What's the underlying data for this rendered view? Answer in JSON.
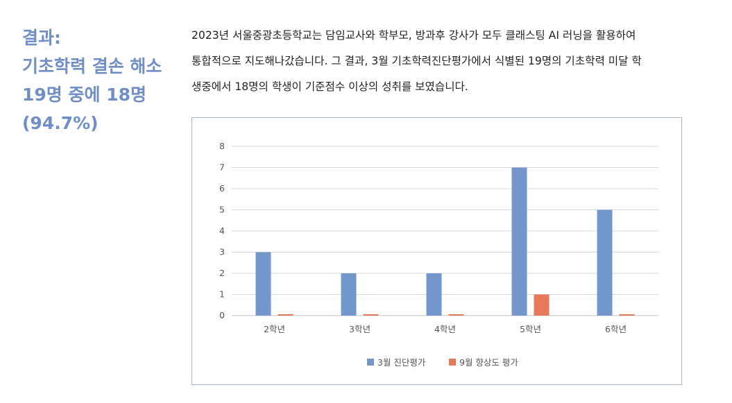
{
  "heading": {
    "lines": [
      "결과:",
      "기초학력 결손 해소",
      "19명 중에 18명",
      "(94.7%)"
    ]
  },
  "description": {
    "lines": [
      "2023년 서울중광초등학교는 담임교사와 학부모, 방과후 강사가 모두 클래스팅 AI 러닝을 활용하여",
      "통합적으로 지도해나갔습니다. 그 결과, 3월 기초학력진단평가에서 식별된 19명의 기초학력 미달 학",
      "생중에서 18명의 학생이 기준점수 이상의 성취를 보였습니다."
    ]
  },
  "chart_data": {
    "type": "bar",
    "categories": [
      "2학년",
      "3학년",
      "4학년",
      "5학년",
      "6학년"
    ],
    "series": [
      {
        "name": "3월 진단평가",
        "values": [
          3,
          2,
          2,
          7,
          5
        ],
        "color": "#7396cc"
      },
      {
        "name": "9월 향상도 평가",
        "values": [
          0,
          0,
          0,
          1,
          0
        ],
        "color": "#e8785a"
      }
    ],
    "ylim": [
      0,
      8
    ],
    "yticks": [
      0,
      1,
      2,
      3,
      4,
      5,
      6,
      7,
      8
    ],
    "grid": true,
    "legend_position": "bottom"
  }
}
